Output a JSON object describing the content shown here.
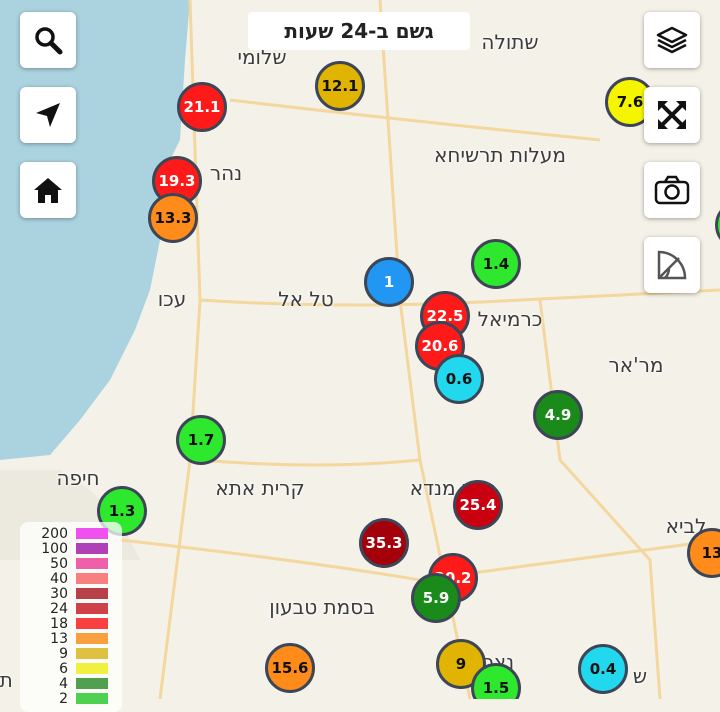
{
  "title": "גשם ב-24 שעות",
  "controls": {
    "search": "search-icon",
    "locate": "navigation-arrow-icon",
    "home": "home-icon",
    "layers": "layers-icon",
    "fullscreen": "expand-icon",
    "camera": "camera-icon",
    "measure": "protractor-icon"
  },
  "towns": [
    "שתולה",
    "שלומי",
    "מעלות תרשיחא",
    "נהר",
    "עכו",
    "טל אל",
    "כרמיאל",
    "מר'אר",
    "חיפה",
    "קרית אתא",
    "כפר מנדא",
    "לביא",
    "בסמת טבעון",
    "נצרת",
    "ש",
    "תי"
  ],
  "stations": [
    {
      "value": "21.1",
      "color": "#ff1a1a"
    },
    {
      "value": "12.1",
      "color": "#e0b400"
    },
    {
      "value": "7.6",
      "color": "#f5f500"
    },
    {
      "value": "19.3",
      "color": "#ff1a1a"
    },
    {
      "value": "13.3",
      "color": "#ff8c1a"
    },
    {
      "value": "1",
      "color": "#2196f3"
    },
    {
      "value": "1.4",
      "color": "#2ee82e"
    },
    {
      "value": "22.5",
      "color": "#ff1a1a"
    },
    {
      "value": "20.6",
      "color": "#ff1a1a"
    },
    {
      "value": "0.6",
      "color": "#22d8ee"
    },
    {
      "value": "4.9",
      "color": "#1a8a1a"
    },
    {
      "value": "1.7",
      "color": "#2ee82e"
    },
    {
      "value": "1.3",
      "color": "#2ee82e"
    },
    {
      "value": "25.4",
      "color": "#c8000f"
    },
    {
      "value": "35.3",
      "color": "#a3000c"
    },
    {
      "value": "20.2",
      "color": "#ff1a1a"
    },
    {
      "value": "5.9",
      "color": "#1a8a1a"
    },
    {
      "value": "13",
      "color": "#ff8c1a"
    },
    {
      "value": "15.6",
      "color": "#ff8c1a"
    },
    {
      "value": "9",
      "color": "#e0b400"
    },
    {
      "value": "1.5",
      "color": "#2ee82e"
    },
    {
      "value": "0.4",
      "color": "#22d8ee"
    },
    {
      "value": "",
      "color": "#2ee82e"
    }
  ],
  "legend": [
    {
      "label": "200",
      "color": "#f050f0"
    },
    {
      "label": "100",
      "color": "#b040b8"
    },
    {
      "label": "50",
      "color": "#f060a8"
    },
    {
      "label": "40",
      "color": "#f88080"
    },
    {
      "label": "30",
      "color": "#b84048"
    },
    {
      "label": "24",
      "color": "#d04048"
    },
    {
      "label": "18",
      "color": "#f84040"
    },
    {
      "label": "13",
      "color": "#f8a040"
    },
    {
      "label": "9",
      "color": "#e0c040"
    },
    {
      "label": "6",
      "color": "#f0f040"
    },
    {
      "label": "4",
      "color": "#50a050"
    },
    {
      "label": "2",
      "color": "#50d050"
    }
  ]
}
